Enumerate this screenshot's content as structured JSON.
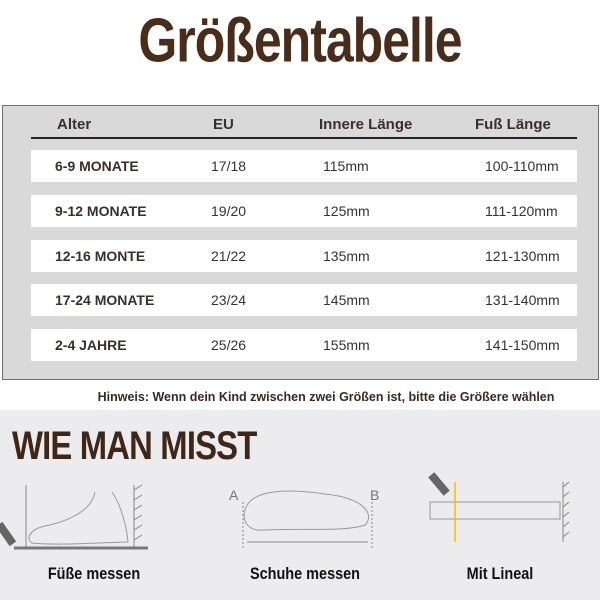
{
  "title": "Größentabelle",
  "table": {
    "headers": [
      "Alter",
      "EU",
      "Innere Länge",
      "Fuß Länge"
    ],
    "rows": [
      [
        "6-9 MONATE",
        "17/18",
        "115mm",
        "100-110mm"
      ],
      [
        "9-12 MONATE",
        "19/20",
        "125mm",
        "111-120mm"
      ],
      [
        "12-16 MONTE",
        "21/22",
        "135mm",
        "121-130mm"
      ],
      [
        "17-24 MONATE",
        "23/24",
        "145mm",
        "131-140mm"
      ],
      [
        "2-4 JAHRE",
        "25/26",
        "155mm",
        "141-150mm"
      ]
    ]
  },
  "note": "Hinweis: Wenn dein Kind zwischen zwei Größen ist, bitte die Größere wählen",
  "how": {
    "heading": "WIE MAN MISST",
    "labels_ab": [
      "A",
      "B"
    ],
    "captions": [
      "Füße messen",
      "Schuhe messen",
      "Mit Lineal"
    ]
  },
  "colors": {
    "brand": "#4a2c1a",
    "table_bg": "#d9d9d9",
    "ruler_mark": "#f2c200"
  }
}
